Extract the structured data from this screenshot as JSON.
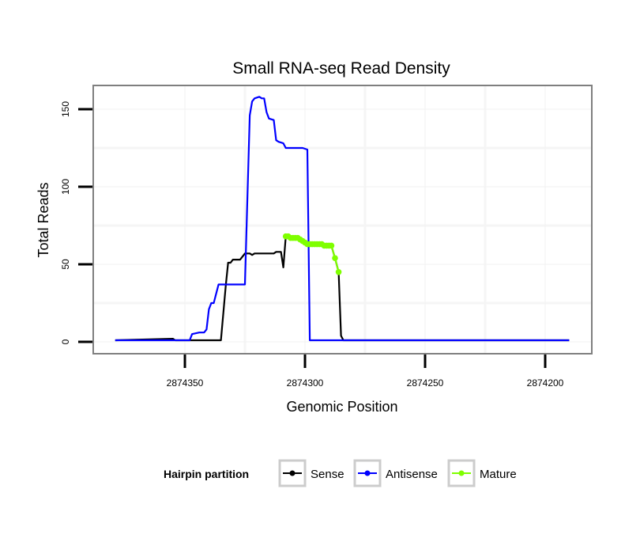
{
  "chart_data": {
    "type": "line",
    "title": "Small RNA-seq Read Density",
    "xlabel": "Genomic Position",
    "ylabel": "Total Reads",
    "xlim": [
      2874190,
      2874397
    ],
    "x_reversed": true,
    "ylim": [
      -8,
      165
    ],
    "xticks": [
      2874350,
      2874300,
      2874250,
      2874200
    ],
    "xtick_labels": [
      "2874350",
      "2874300",
      "2874250",
      "2874200"
    ],
    "yticks": [
      0,
      50,
      100,
      150
    ],
    "ytick_labels": [
      "0",
      "50",
      "100",
      "150"
    ],
    "grid": true,
    "legend": {
      "title": "Hairpin partition",
      "placement": "bottom",
      "entries": [
        "Sense",
        "Antisense",
        "Mature"
      ]
    },
    "series": [
      {
        "name": "Sense",
        "color": "#000000",
        "points": [
          [
            2874379,
            1
          ],
          [
            2874355,
            2
          ],
          [
            2874354,
            1
          ],
          [
            2874335,
            1
          ],
          [
            2874333,
            36
          ],
          [
            2874332,
            51
          ],
          [
            2874331,
            51
          ],
          [
            2874330,
            53
          ],
          [
            2874327,
            53
          ],
          [
            2874325,
            57
          ],
          [
            2874323,
            57
          ],
          [
            2874322,
            56
          ],
          [
            2874321,
            57
          ],
          [
            2874313,
            57
          ],
          [
            2874312,
            58
          ],
          [
            2874310,
            58
          ],
          [
            2874309,
            48
          ],
          [
            2874308,
            68
          ],
          [
            2874306,
            67
          ],
          [
            2874303,
            67
          ],
          [
            2874301,
            65
          ],
          [
            2874299,
            63
          ],
          [
            2874293,
            63
          ],
          [
            2874289,
            62
          ],
          [
            2874287.5,
            54
          ],
          [
            2874286,
            45
          ],
          [
            2874285,
            4
          ],
          [
            2874284,
            1
          ],
          [
            2874190,
            1
          ]
        ]
      },
      {
        "name": "Antisense",
        "color": "#0000ff",
        "points": [
          [
            2874379,
            1
          ],
          [
            2874348,
            1
          ],
          [
            2874347,
            5
          ],
          [
            2874344,
            6
          ],
          [
            2874342,
            6
          ],
          [
            2874341,
            8
          ],
          [
            2874340,
            21
          ],
          [
            2874339,
            25
          ],
          [
            2874338,
            25
          ],
          [
            2874336,
            37
          ],
          [
            2874325,
            37
          ],
          [
            2874323,
            146
          ],
          [
            2874322,
            155
          ],
          [
            2874321,
            157
          ],
          [
            2874319,
            158
          ],
          [
            2874318,
            157
          ],
          [
            2874317,
            157
          ],
          [
            2874316,
            148
          ],
          [
            2874315,
            144
          ],
          [
            2874313,
            143
          ],
          [
            2874312,
            130
          ],
          [
            2874311,
            129
          ],
          [
            2874309,
            128
          ],
          [
            2874308,
            125
          ],
          [
            2874301,
            125
          ],
          [
            2874299,
            124
          ],
          [
            2874298,
            1
          ],
          [
            2874190,
            1
          ]
        ]
      },
      {
        "name": "Mature",
        "color": "#7fff00",
        "points": [
          [
            2874308,
            68
          ],
          [
            2874307,
            68
          ],
          [
            2874306,
            67
          ],
          [
            2874305,
            67
          ],
          [
            2874304,
            67
          ],
          [
            2874303,
            67
          ],
          [
            2874302,
            66
          ],
          [
            2874301,
            65
          ],
          [
            2874300,
            64
          ],
          [
            2874299,
            63
          ],
          [
            2874298,
            63
          ],
          [
            2874297,
            63
          ],
          [
            2874296,
            63
          ],
          [
            2874295,
            63
          ],
          [
            2874294,
            63
          ],
          [
            2874293,
            63
          ],
          [
            2874292,
            62
          ],
          [
            2874291,
            62
          ],
          [
            2874290,
            62
          ],
          [
            2874289,
            62
          ],
          [
            2874287.5,
            54
          ],
          [
            2874286,
            45
          ]
        ]
      }
    ]
  }
}
